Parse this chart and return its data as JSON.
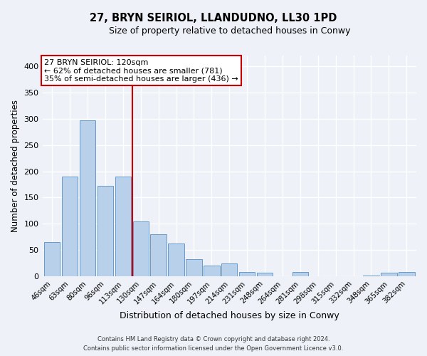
{
  "title": "27, BRYN SEIRIOL, LLANDUDNO, LL30 1PD",
  "subtitle": "Size of property relative to detached houses in Conwy",
  "xlabel": "Distribution of detached houses by size in Conwy",
  "ylabel": "Number of detached properties",
  "bar_labels": [
    "46sqm",
    "63sqm",
    "80sqm",
    "96sqm",
    "113sqm",
    "130sqm",
    "147sqm",
    "164sqm",
    "180sqm",
    "197sqm",
    "214sqm",
    "231sqm",
    "248sqm",
    "264sqm",
    "281sqm",
    "298sqm",
    "315sqm",
    "332sqm",
    "348sqm",
    "365sqm",
    "382sqm"
  ],
  "bar_values": [
    65,
    190,
    297,
    172,
    190,
    105,
    80,
    62,
    33,
    21,
    25,
    8,
    7,
    0,
    8,
    0,
    0,
    0,
    2,
    7,
    8
  ],
  "bar_color": "#b8d0ea",
  "bar_edge_color": "#6699cc",
  "ylim": [
    0,
    420
  ],
  "yticks": [
    0,
    50,
    100,
    150,
    200,
    250,
    300,
    350,
    400
  ],
  "vline_x": 4.53,
  "vline_color": "#cc0000",
  "annotation_title": "27 BRYN SEIRIOL: 120sqm",
  "annotation_line1": "← 62% of detached houses are smaller (781)",
  "annotation_line2": "35% of semi-detached houses are larger (436) →",
  "annotation_box_color": "#cc0000",
  "background_color": "#eef2f8",
  "footer1": "Contains HM Land Registry data © Crown copyright and database right 2024.",
  "footer2": "Contains public sector information licensed under the Open Government Licence v3.0."
}
